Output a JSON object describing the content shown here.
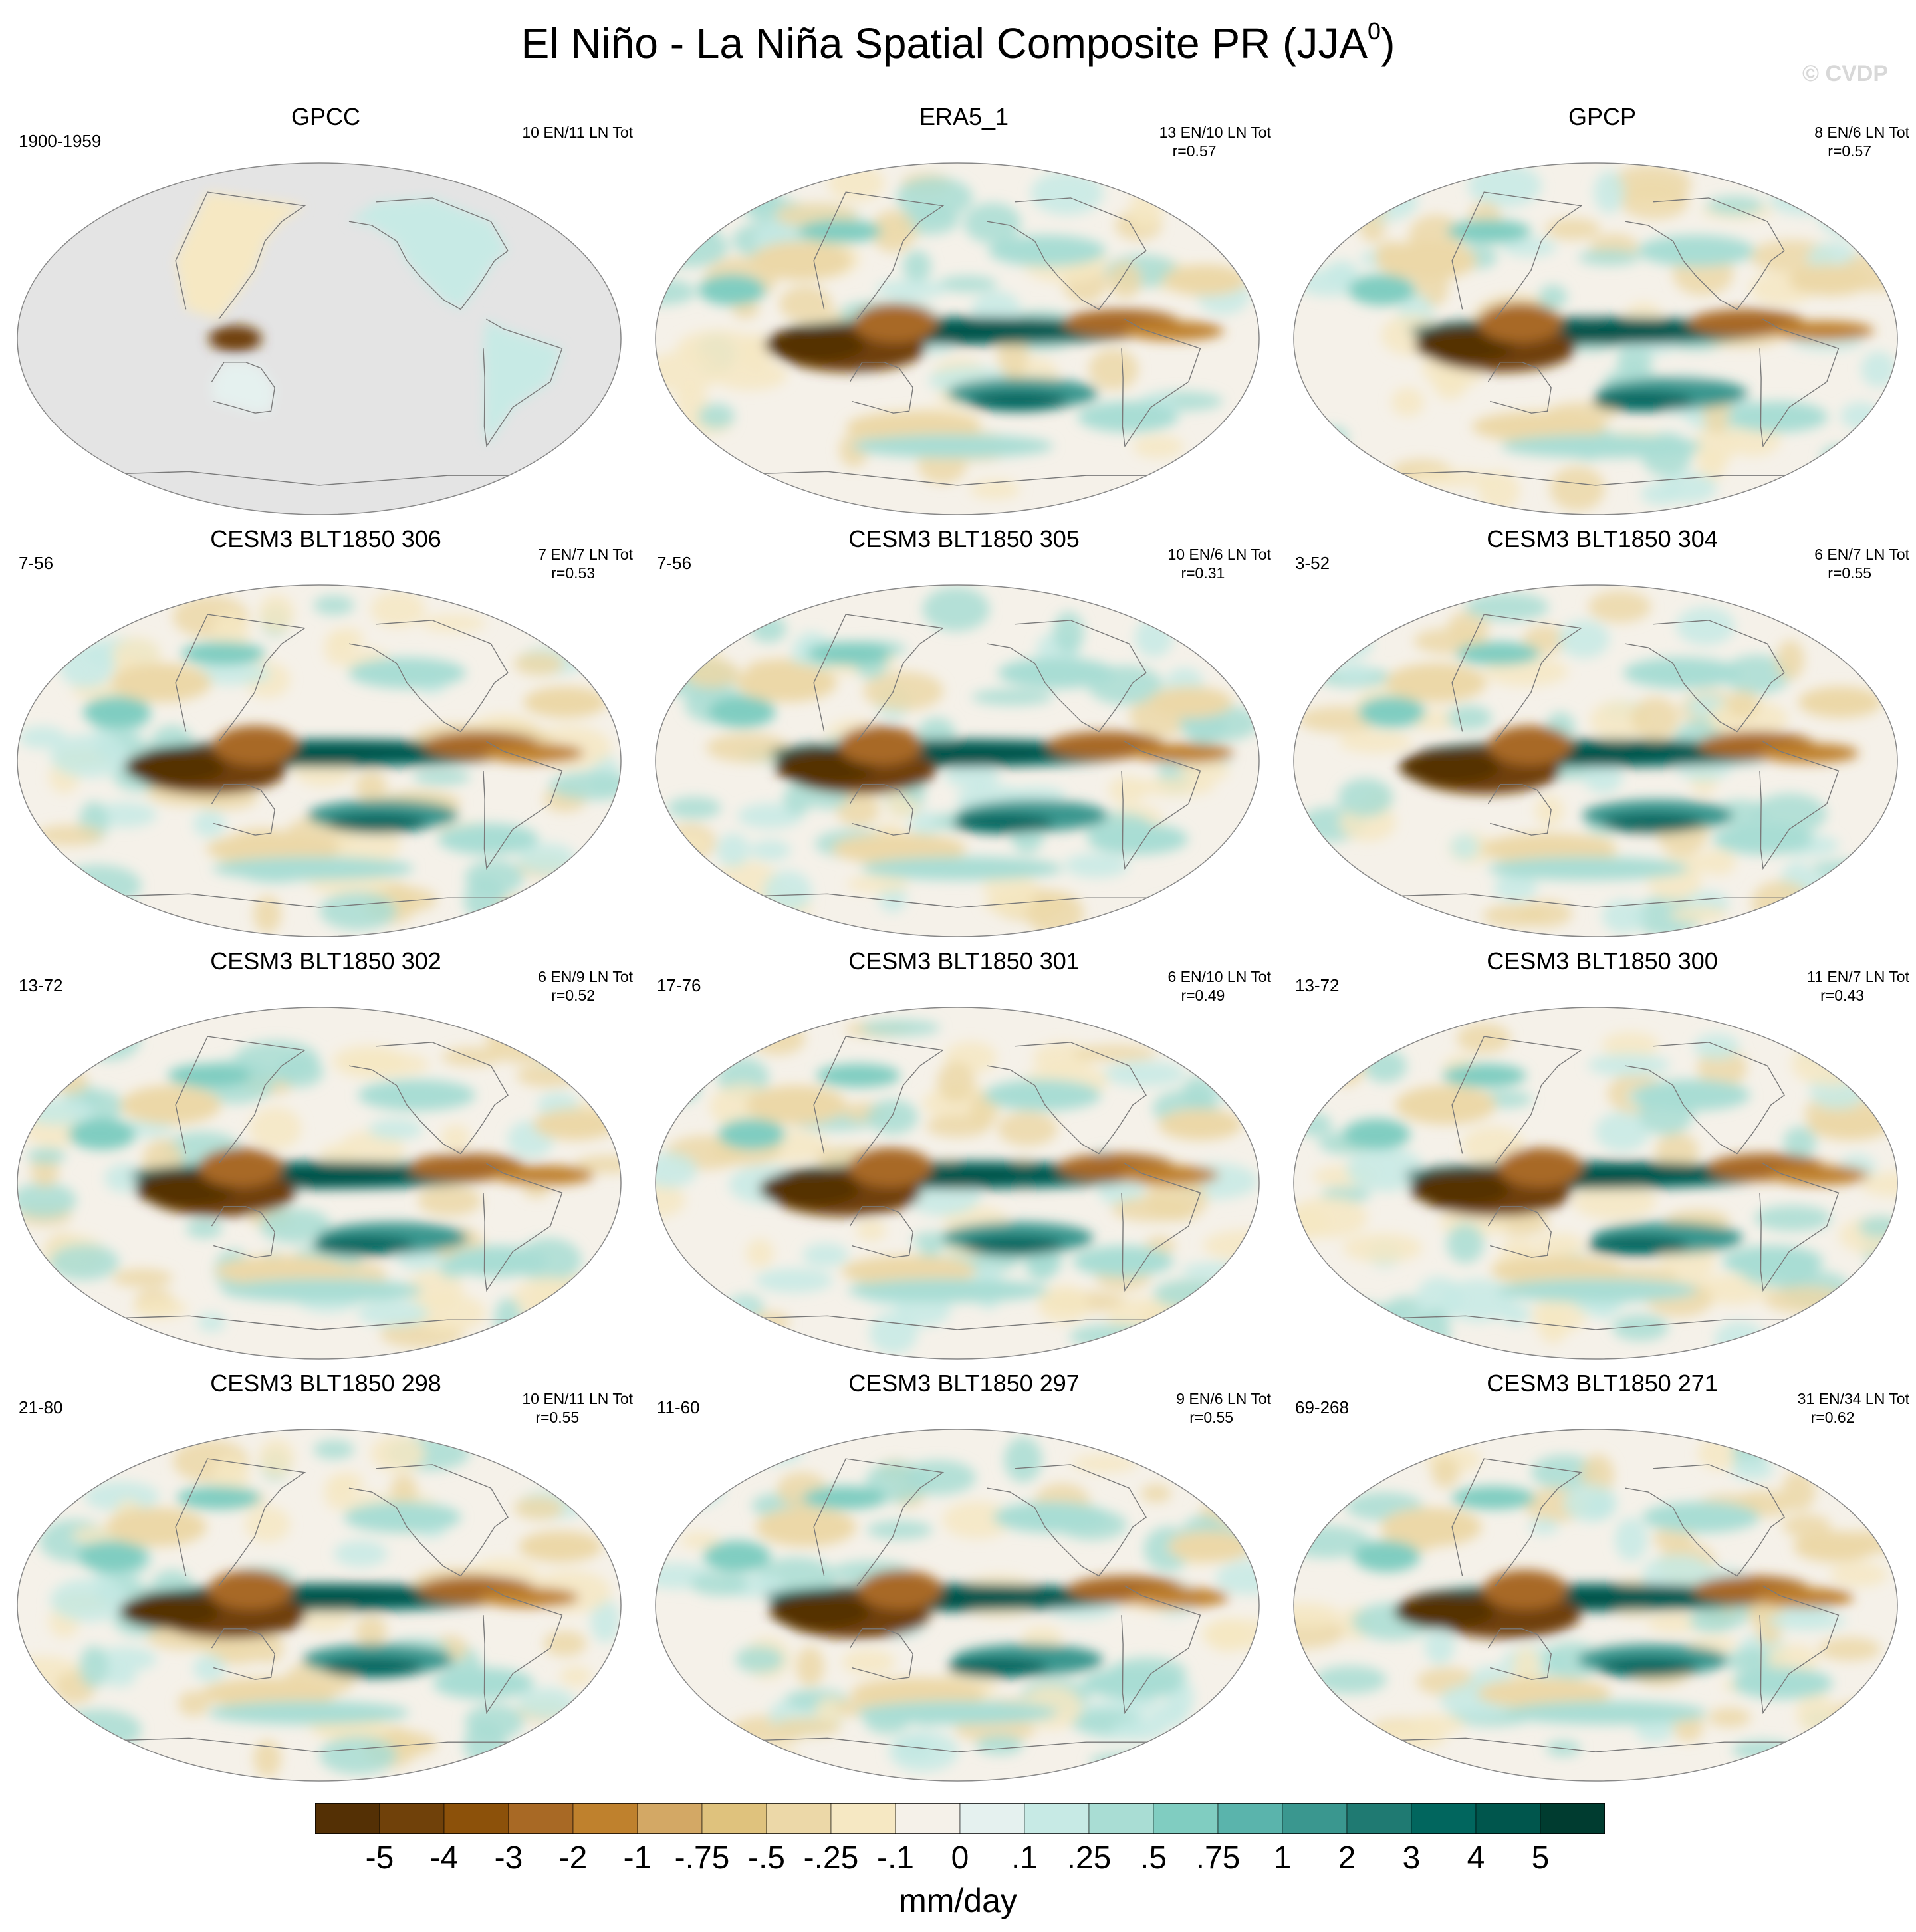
{
  "title": "El Niño - La Niña Spatial Composite PR (JJA",
  "title_sup": "0",
  "title_close": ")",
  "watermark": "© CVDP",
  "panels": [
    {
      "title": "GPCC",
      "years": "1900-1959",
      "counts": "10 EN/11 LN Tot",
      "r": ""
    },
    {
      "title": "ERA5_1",
      "years": "",
      "counts": "13 EN/10 LN Tot",
      "r": "r=0.57"
    },
    {
      "title": "GPCP",
      "years": "",
      "counts": "8 EN/6 LN Tot",
      "r": "r=0.57"
    },
    {
      "title": "CESM3 BLT1850 306",
      "years": "7-56",
      "counts": "7 EN/7 LN Tot",
      "r": "r=0.53"
    },
    {
      "title": "CESM3 BLT1850 305",
      "years": "7-56",
      "counts": "10 EN/6 LN Tot",
      "r": "r=0.31"
    },
    {
      "title": "CESM3 BLT1850 304",
      "years": "3-52",
      "counts": "6 EN/7 LN Tot",
      "r": "r=0.55"
    },
    {
      "title": "CESM3 BLT1850 302",
      "years": "13-72",
      "counts": "6 EN/9 LN Tot",
      "r": "r=0.52"
    },
    {
      "title": "CESM3 BLT1850 301",
      "years": "17-76",
      "counts": "6 EN/10 LN Tot",
      "r": "r=0.49"
    },
    {
      "title": "CESM3 BLT1850 300",
      "years": "13-72",
      "counts": "11 EN/7 LN Tot",
      "r": "r=0.43"
    },
    {
      "title": "CESM3 BLT1850 298",
      "years": "21-80",
      "counts": "10 EN/11 LN Tot",
      "r": "r=0.55"
    },
    {
      "title": "CESM3 BLT1850 297",
      "years": "11-60",
      "counts": "9 EN/6 LN Tot",
      "r": "r=0.55"
    },
    {
      "title": "CESM3 BLT1850 271",
      "years": "69-268",
      "counts": "31 EN/34 LN Tot",
      "r": "r=0.62"
    }
  ],
  "chart_data": {
    "type": "heatmap",
    "title": "El Niño - La Niña Spatial Composite PR (JJA0)",
    "projection": "Robinson (Pacific-centered), global map panels",
    "colorbar": {
      "label": "mm/day",
      "tick_labels": [
        "-5",
        "-4",
        "-3",
        "-2",
        "-1",
        "-.75",
        "-.5",
        "-.25",
        "-.1",
        "0",
        ".1",
        ".25",
        ".5",
        ".75",
        "1",
        "2",
        "3",
        "4",
        "5"
      ],
      "levels": [
        -5,
        -4,
        -3,
        -2,
        -1,
        -0.75,
        -0.5,
        -0.25,
        -0.1,
        0,
        0.1,
        0.25,
        0.5,
        0.75,
        1,
        2,
        3,
        4,
        5
      ],
      "colors": [
        "#543005",
        "#70410a",
        "#8c510a",
        "#a86925",
        "#bf812d",
        "#d3a865",
        "#dfc27d",
        "#ecd8a8",
        "#f6e8c3",
        "#f5f1e9",
        "#e5f1ef",
        "#c7eae5",
        "#a9ddd4",
        "#80cdc1",
        "#5ab4ac",
        "#3a978f",
        "#1f7a72",
        "#01665e",
        "#00564d",
        "#003c30"
      ]
    },
    "panels": [
      {
        "name": "GPCC",
        "period": "1900-1959",
        "el_nino_events": 10,
        "la_nina_events": 11,
        "pattern_correlation": null,
        "land_only": true
      },
      {
        "name": "ERA5_1",
        "el_nino_events": 13,
        "la_nina_events": 10,
        "pattern_correlation": 0.57
      },
      {
        "name": "GPCP",
        "el_nino_events": 8,
        "la_nina_events": 6,
        "pattern_correlation": 0.57
      },
      {
        "name": "CESM3 BLT1850 306",
        "period": "7-56",
        "el_nino_events": 7,
        "la_nina_events": 7,
        "pattern_correlation": 0.53
      },
      {
        "name": "CESM3 BLT1850 305",
        "period": "7-56",
        "el_nino_events": 10,
        "la_nina_events": 6,
        "pattern_correlation": 0.31
      },
      {
        "name": "CESM3 BLT1850 304",
        "period": "3-52",
        "el_nino_events": 6,
        "la_nina_events": 7,
        "pattern_correlation": 0.55
      },
      {
        "name": "CESM3 BLT1850 302",
        "period": "13-72",
        "el_nino_events": 6,
        "la_nina_events": 9,
        "pattern_correlation": 0.52
      },
      {
        "name": "CESM3 BLT1850 301",
        "period": "17-76",
        "el_nino_events": 6,
        "la_nina_events": 10,
        "pattern_correlation": 0.49
      },
      {
        "name": "CESM3 BLT1850 300",
        "period": "13-72",
        "el_nino_events": 11,
        "la_nina_events": 7,
        "pattern_correlation": 0.43
      },
      {
        "name": "CESM3 BLT1850 298",
        "period": "21-80",
        "el_nino_events": 10,
        "la_nina_events": 11,
        "pattern_correlation": 0.55
      },
      {
        "name": "CESM3 BLT1850 297",
        "period": "11-60",
        "el_nino_events": 9,
        "la_nina_events": 6,
        "pattern_correlation": 0.55
      },
      {
        "name": "CESM3 BLT1850 271",
        "period": "69-268",
        "el_nino_events": 31,
        "la_nina_events": 34,
        "pattern_correlation": 0.62
      }
    ]
  }
}
